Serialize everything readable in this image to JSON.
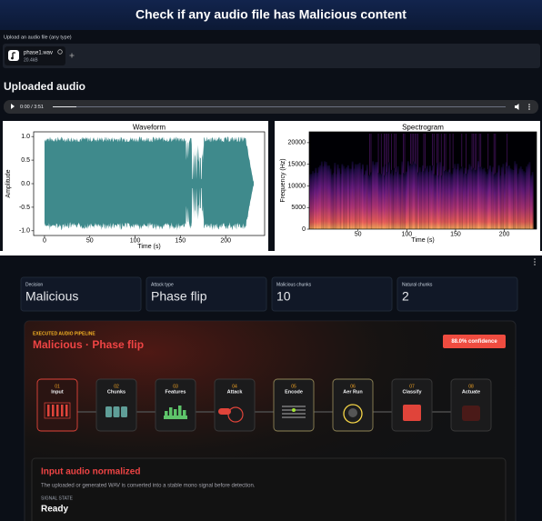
{
  "header": {
    "title": "Check if any audio file has Malicious content"
  },
  "upload": {
    "label": "Upload an audio file (any type)",
    "file_name": "phase1.wav",
    "file_size": "20.4kB"
  },
  "audio": {
    "heading": "Uploaded audio",
    "time": "0:00 / 3:51"
  },
  "chart_data": [
    {
      "type": "area",
      "title": "Waveform",
      "x_label": "Time (s)",
      "y_label": "Amplitude",
      "color": "#3f8a8c",
      "xlim": [
        -12,
        243
      ],
      "ylim": [
        -1.1,
        1.1
      ],
      "xticks": [
        0,
        50,
        100,
        150,
        200
      ],
      "yticks": [
        {
          "value": 1,
          "label": "1.0"
        },
        0.5,
        {
          "value": 0,
          "label": "0.0"
        },
        -0.5,
        {
          "value": -1,
          "label": "-1.0"
        }
      ]
    },
    {
      "type": "heatmap",
      "title": "Spectrogram",
      "x_label": "Time (s)",
      "y_label": "Frequency (Hz)",
      "xlim": [
        0,
        233
      ],
      "ylim": [
        0,
        22500
      ],
      "xticks": [
        50,
        100,
        150,
        200
      ],
      "yticks": [
        0,
        5000,
        10000,
        15000,
        20000
      ]
    }
  ],
  "metrics": [
    {
      "label": "Decision",
      "value": "Malicious"
    },
    {
      "label": "Attack type",
      "value": "Phase flip"
    },
    {
      "label": "Malicious chunks",
      "value": 10
    },
    {
      "label": "Natural chunks",
      "value": 2
    }
  ],
  "pipeline": {
    "kicker": "EXECUTED AUDIO PIPELINE",
    "title": "Malicious · Phase flip",
    "confidence": "88.0% confidence",
    "steps": [
      {
        "number": "01",
        "name": "Input"
      },
      {
        "number": "02",
        "name": "Chunks"
      },
      {
        "number": "03",
        "name": "Features"
      },
      {
        "number": "04",
        "name": "Attack"
      },
      {
        "number": "05",
        "name": "Encode"
      },
      {
        "number": "06",
        "name": "Aer Run"
      },
      {
        "number": "07",
        "name": "Classify"
      },
      {
        "number": "08",
        "name": "Actuate"
      }
    ]
  },
  "detail": {
    "title": "Input audio normalized",
    "description": "The uploaded or generated WAV is converted into a stable mono signal before detection.",
    "state_label": "SIGNAL STATE",
    "state": "Ready"
  }
}
